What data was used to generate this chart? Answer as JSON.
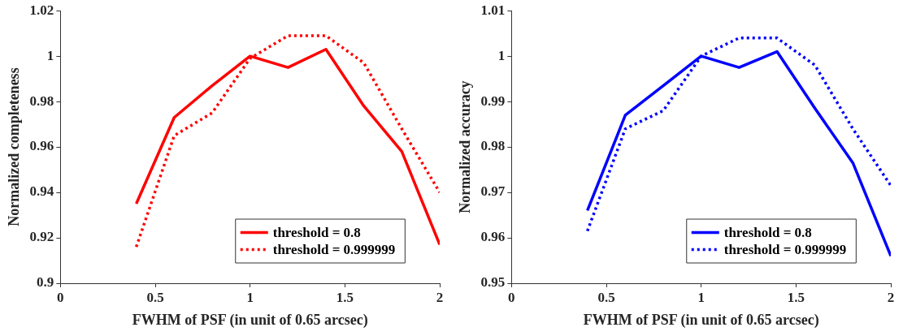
{
  "chart_data": [
    {
      "type": "line",
      "xlabel": "FWHM of PSF (in unit of 0.65 arcsec)",
      "ylabel": "Normalized completeness",
      "x": [
        0.4,
        0.6,
        0.8,
        1.0,
        1.2,
        1.4,
        1.6,
        1.8,
        2.0
      ],
      "xlim": [
        0,
        2
      ],
      "xticks": [
        0,
        0.5,
        1,
        1.5,
        2
      ],
      "ylim": [
        0.9,
        1.02
      ],
      "yticks": [
        0.9,
        0.92,
        0.94,
        0.96,
        0.98,
        1,
        1.02
      ],
      "grid": false,
      "legend": "bottom right",
      "marker": "none",
      "series": [
        {
          "name": "threshold = 0.8",
          "color": "#ff0000",
          "line_style": "solid",
          "values": [
            0.935,
            0.973,
            0.987,
            1.0,
            0.995,
            1.003,
            0.978,
            0.958,
            0.917
          ]
        },
        {
          "name": "threshold = 0.999999",
          "color": "#ff0000",
          "line_style": "dotted",
          "values": [
            0.916,
            0.965,
            0.975,
            0.999,
            1.009,
            1.009,
            0.997,
            0.968,
            0.94
          ]
        }
      ]
    },
    {
      "type": "line",
      "xlabel": "FWHM of PSF (in unit of 0.65 arcsec)",
      "ylabel": "Normalized accuracy",
      "x": [
        0.4,
        0.6,
        0.8,
        1.0,
        1.2,
        1.4,
        1.6,
        1.8,
        2.0
      ],
      "xlim": [
        0,
        2
      ],
      "xticks": [
        0,
        0.5,
        1,
        1.5,
        2
      ],
      "ylim": [
        0.95,
        1.01
      ],
      "yticks": [
        0.95,
        0.96,
        0.97,
        0.98,
        0.99,
        1,
        1.01
      ],
      "grid": false,
      "legend": "bottom right",
      "marker": "none",
      "series": [
        {
          "name": "threshold = 0.8",
          "color": "#0000ff",
          "line_style": "solid",
          "values": [
            0.966,
            0.987,
            0.9935,
            1.0,
            0.9975,
            1.001,
            0.9885,
            0.9765,
            0.956
          ]
        },
        {
          "name": "threshold = 0.999999",
          "color": "#0000ff",
          "line_style": "dotted",
          "values": [
            0.9615,
            0.984,
            0.988,
            1.0,
            1.004,
            1.004,
            0.998,
            0.984,
            0.9715
          ]
        }
      ]
    }
  ]
}
